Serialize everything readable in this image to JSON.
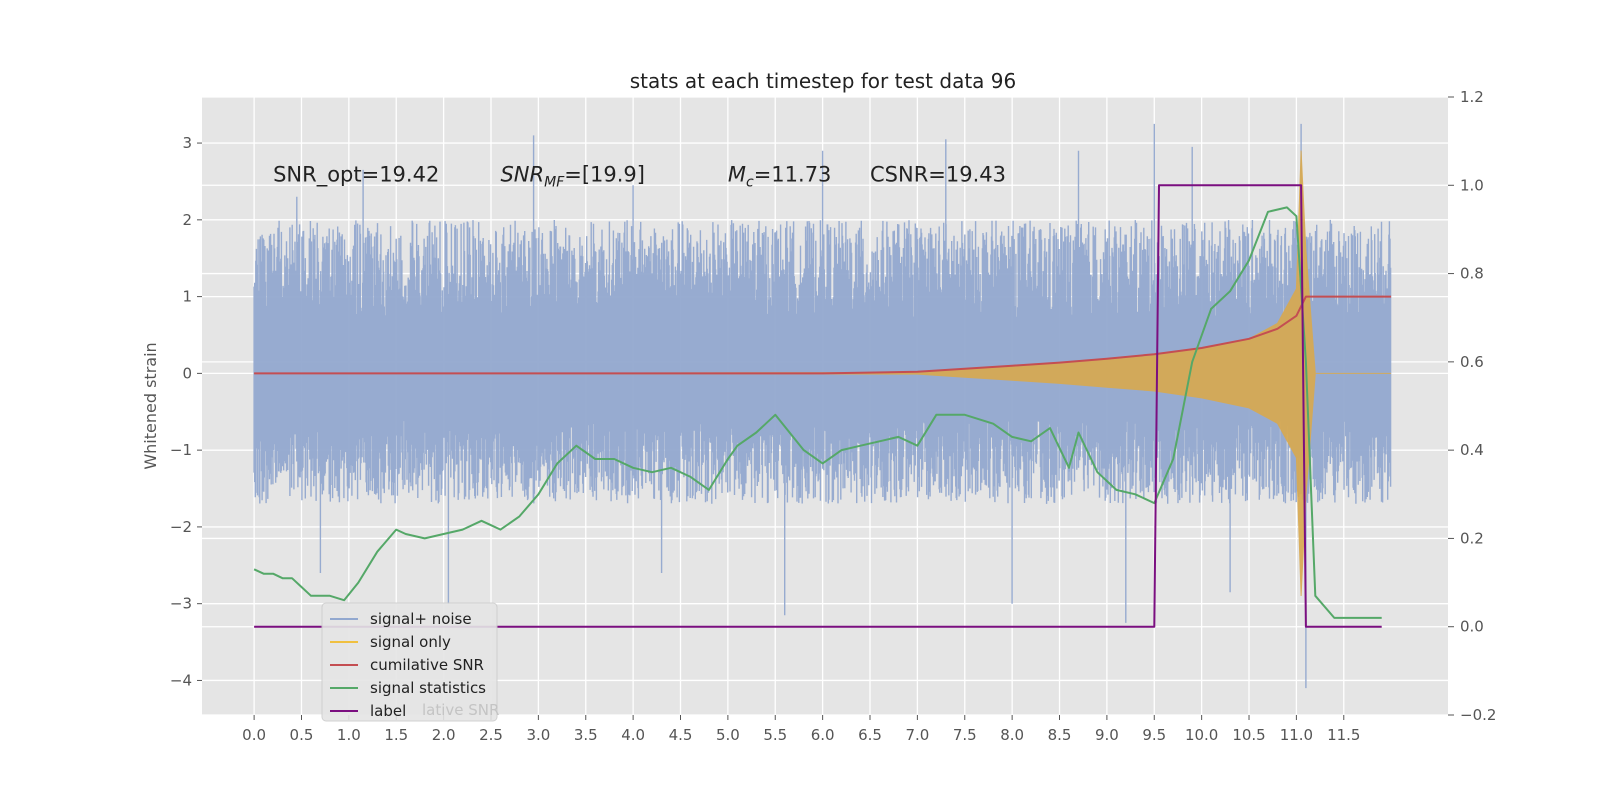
{
  "chart_data": {
    "type": "line",
    "title": "stats at each timestep for test data 96",
    "ylabel_left": "Whitened strain",
    "ylabel_right": "",
    "xlabel": "",
    "grid": true,
    "xlim": [
      -0.55,
      12.6
    ],
    "ylim_left": [
      -4.45,
      3.6
    ],
    "ylim_right": [
      -0.2,
      1.2
    ],
    "x_ticks": [
      0.0,
      0.5,
      1.0,
      1.5,
      2.0,
      2.5,
      3.0,
      3.5,
      4.0,
      4.5,
      5.0,
      5.5,
      6.0,
      6.5,
      7.0,
      7.5,
      8.0,
      8.5,
      9.0,
      9.5,
      10.0,
      10.5,
      11.0,
      11.5
    ],
    "x_tick_labels": [
      "0.0",
      "0.5",
      "1.0",
      "1.5",
      "2.0",
      "2.5",
      "3.0",
      "3.5",
      "4.0",
      "4.5",
      "5.0",
      "5.5",
      "6.0",
      "6.5",
      "7.0",
      "7.5",
      "8.0",
      "8.5",
      "9.0",
      "9.5",
      "10.0",
      "10.5",
      "11.0",
      "11.5"
    ],
    "y_left_ticks": [
      3,
      2,
      1,
      0,
      -1,
      -2,
      -3,
      -4
    ],
    "y_left_tick_labels": [
      "3",
      "2",
      "1",
      "0",
      "−1",
      "−2",
      "−3",
      "−4"
    ],
    "y_right_ticks": [
      1.2,
      1.0,
      0.8,
      0.6,
      0.4,
      0.2,
      0.0,
      -0.2
    ],
    "y_right_tick_labels": [
      "1.2",
      "1.0",
      "0.8",
      "0.6",
      "0.4",
      "0.2",
      "0.0",
      "−0.2"
    ],
    "annotations": [
      {
        "text": "SNR_opt=19.42",
        "x": 0.2,
        "y": 2.5
      },
      {
        "text": "SNR",
        "sub": "MF",
        "suffix": "=[19.9]",
        "x": 2.6,
        "y": 2.5
      },
      {
        "text": "M",
        "sub": "c",
        "suffix": "=11.73",
        "x": 5.0,
        "y": 2.5
      },
      {
        "text": "CSNR=19.43",
        "x": 6.5,
        "y": 2.5
      }
    ],
    "legend_position": "lower-left",
    "legend": [
      {
        "label": "signal+ noise",
        "color": "#92a8cf"
      },
      {
        "label": "signal only",
        "color": "#f0c040"
      },
      {
        "label": "cumilative SNR",
        "color": "#c44e52"
      },
      {
        "label": "signal statistics",
        "color": "#55a868"
      },
      {
        "label": "label",
        "color": "#7b0f80"
      }
    ],
    "legend_ghost_text": "lative SNR",
    "series": [
      {
        "name": "signal+ noise",
        "axis": "left",
        "color": "#92a8cf",
        "style": "noise band",
        "x_range": [
          0.0,
          12.0
        ],
        "typical_min": -1.7,
        "typical_max": 2.0,
        "spikes": [
          [
            0.45,
            2.3
          ],
          [
            0.7,
            -2.6
          ],
          [
            1.15,
            2.65
          ],
          [
            2.05,
            -3.0
          ],
          [
            2.95,
            3.1
          ],
          [
            4.0,
            2.45
          ],
          [
            4.3,
            -2.6
          ],
          [
            5.6,
            -3.15
          ],
          [
            7.3,
            3.05
          ],
          [
            8.0,
            -3.0
          ],
          [
            9.5,
            3.25
          ],
          [
            9.2,
            -3.25
          ],
          [
            10.3,
            -2.85
          ],
          [
            11.05,
            3.25
          ],
          [
            11.1,
            -4.1
          ],
          [
            9.9,
            2.95
          ],
          [
            8.7,
            2.9
          ],
          [
            6.0,
            2.9
          ]
        ]
      },
      {
        "name": "signal only",
        "axis": "left",
        "color": "#e8b04a",
        "style": "chirp envelope",
        "x": [
          0.0,
          7.0,
          7.5,
          8.0,
          8.5,
          9.0,
          9.5,
          10.0,
          10.5,
          10.8,
          11.0,
          11.05,
          11.1,
          11.2,
          12.0
        ],
        "amplitude": [
          0.0,
          0.01,
          0.05,
          0.09,
          0.13,
          0.18,
          0.23,
          0.32,
          0.45,
          0.65,
          1.1,
          2.9,
          1.6,
          0.0,
          0.0
        ]
      },
      {
        "name": "cumilative SNR",
        "axis": "left",
        "color": "#c44e52",
        "x": [
          0.0,
          6.0,
          7.0,
          7.5,
          8.0,
          8.5,
          9.0,
          9.5,
          10.0,
          10.5,
          10.8,
          11.0,
          11.1,
          11.5,
          12.0
        ],
        "y": [
          0.0,
          0.0,
          0.02,
          0.06,
          0.1,
          0.14,
          0.19,
          0.25,
          0.33,
          0.45,
          0.58,
          0.75,
          1.0,
          1.0,
          1.0
        ]
      },
      {
        "name": "signal statistics",
        "axis": "right",
        "color": "#55a868",
        "x": [
          0.0,
          0.1,
          0.2,
          0.3,
          0.4,
          0.5,
          0.6,
          0.8,
          0.95,
          1.1,
          1.3,
          1.5,
          1.6,
          1.8,
          2.0,
          2.2,
          2.4,
          2.5,
          2.6,
          2.8,
          3.0,
          3.2,
          3.4,
          3.6,
          3.8,
          4.0,
          4.2,
          4.4,
          4.6,
          4.8,
          5.0,
          5.1,
          5.3,
          5.5,
          5.8,
          6.0,
          6.2,
          6.4,
          6.6,
          6.8,
          7.0,
          7.2,
          7.5,
          7.8,
          8.0,
          8.2,
          8.4,
          8.6,
          8.7,
          8.9,
          9.1,
          9.3,
          9.5,
          9.7,
          9.9,
          10.1,
          10.3,
          10.5,
          10.7,
          10.9,
          11.0,
          11.1,
          11.2,
          11.4,
          11.6,
          11.9
        ],
        "y": [
          0.13,
          0.12,
          0.12,
          0.11,
          0.11,
          0.09,
          0.07,
          0.07,
          0.06,
          0.1,
          0.17,
          0.22,
          0.21,
          0.2,
          0.21,
          0.22,
          0.24,
          0.23,
          0.22,
          0.25,
          0.3,
          0.37,
          0.41,
          0.38,
          0.38,
          0.36,
          0.35,
          0.36,
          0.34,
          0.31,
          0.38,
          0.41,
          0.44,
          0.48,
          0.4,
          0.37,
          0.4,
          0.41,
          0.42,
          0.43,
          0.41,
          0.48,
          0.48,
          0.46,
          0.43,
          0.42,
          0.45,
          0.36,
          0.44,
          0.35,
          0.31,
          0.3,
          0.28,
          0.38,
          0.6,
          0.72,
          0.76,
          0.83,
          0.94,
          0.95,
          0.93,
          0.6,
          0.07,
          0.02,
          0.02,
          0.02
        ]
      },
      {
        "name": "label",
        "axis": "right",
        "color": "#7b0f80",
        "x": [
          0.0,
          9.5,
          9.55,
          11.05,
          11.1,
          11.9
        ],
        "y": [
          0.0,
          0.0,
          1.0,
          1.0,
          0.0,
          0.0
        ]
      }
    ]
  }
}
